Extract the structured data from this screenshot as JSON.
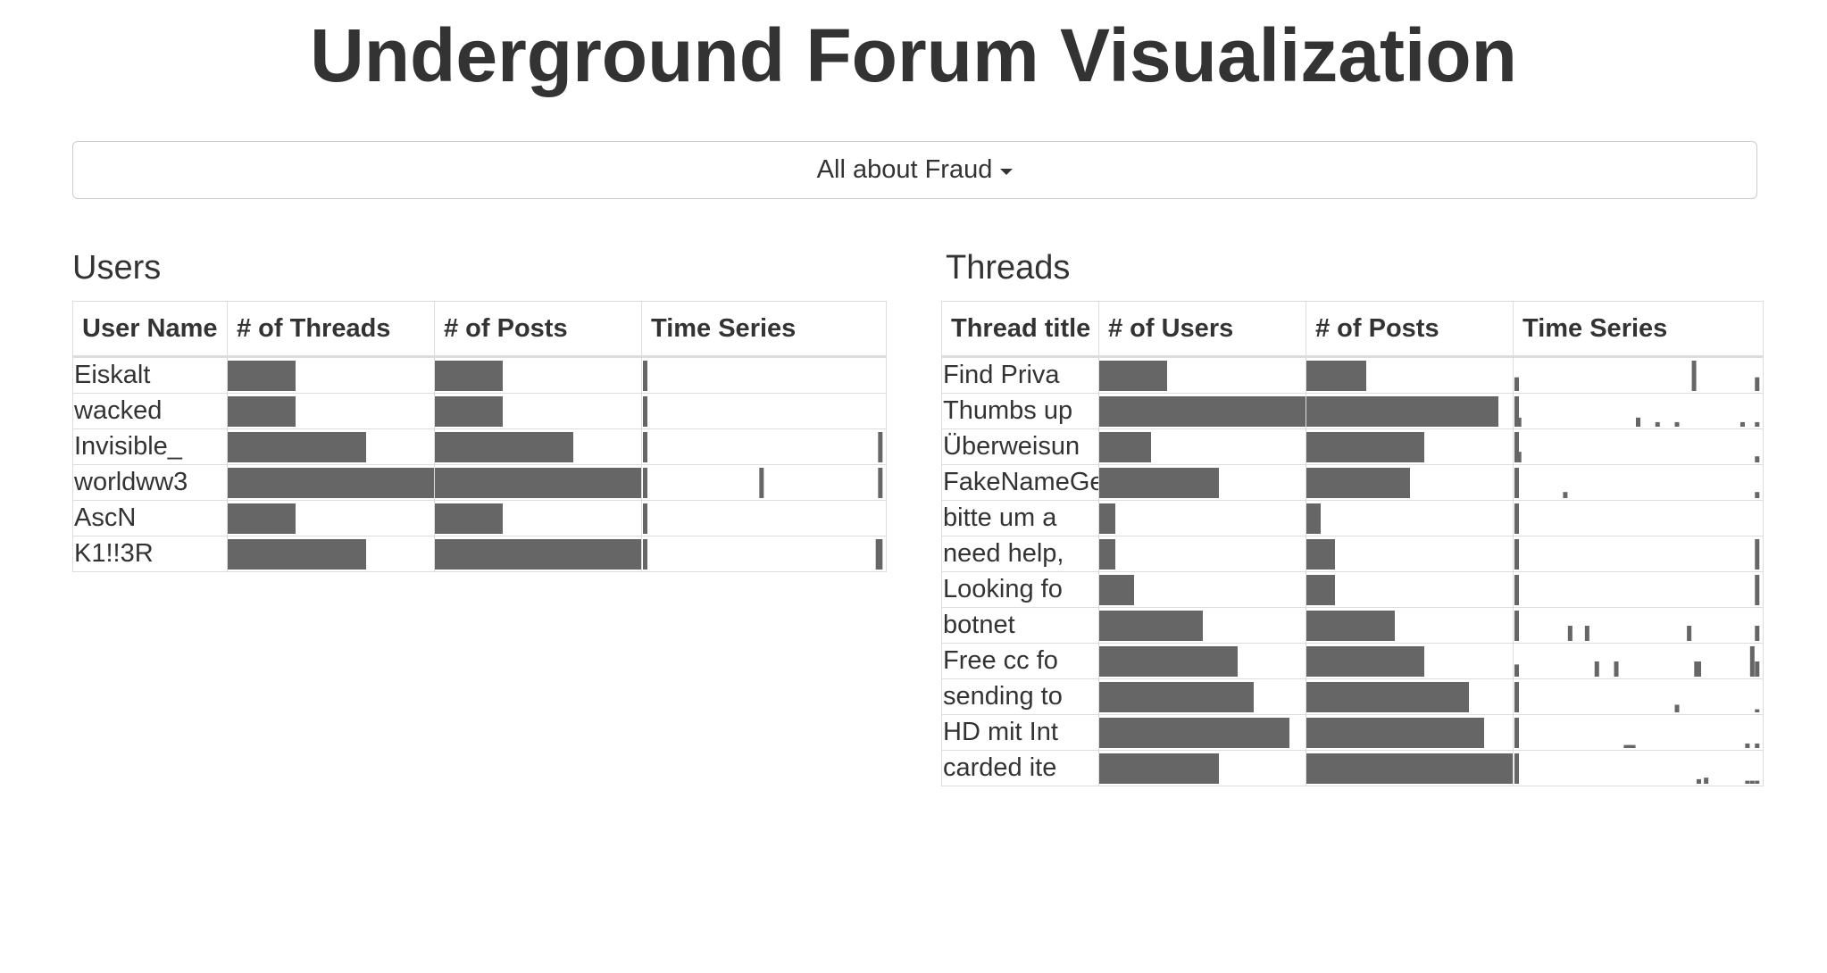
{
  "page": {
    "title": "Underground Forum Visualization"
  },
  "forum_select": {
    "selected": "All about Fraud"
  },
  "colors": {
    "bar": "#666666",
    "border": "#dddddd",
    "text": "#333333"
  },
  "users": {
    "title": "Users",
    "columns": [
      "User Name",
      "# of Threads",
      "# of Posts",
      "Time Series"
    ],
    "rows": [
      {
        "name": "Eiskalt",
        "threads": 0.33,
        "posts": 0.33,
        "spikes": [
          [
            0,
            1
          ]
        ]
      },
      {
        "name": "wacked",
        "threads": 0.33,
        "posts": 0.33,
        "spikes": [
          [
            0,
            1
          ]
        ]
      },
      {
        "name": "Invisible_",
        "threads": 0.67,
        "posts": 0.67,
        "spikes": [
          [
            0,
            1
          ],
          [
            0.99,
            1
          ]
        ]
      },
      {
        "name": "worldww3",
        "threads": 1.0,
        "posts": 1.0,
        "spikes": [
          [
            0,
            1
          ],
          [
            0.49,
            1
          ],
          [
            0.99,
            1
          ]
        ]
      },
      {
        "name": "AscN",
        "threads": 0.33,
        "posts": 0.33,
        "spikes": [
          [
            0,
            1
          ]
        ]
      },
      {
        "name": "K1!!3R",
        "threads": 0.67,
        "posts": 1.0,
        "spikes": [
          [
            0,
            1
          ],
          [
            0.98,
            1
          ],
          [
            0.99,
            1
          ]
        ]
      }
    ]
  },
  "threads": {
    "title": "Threads",
    "columns": [
      "Thread title",
      "# of Users",
      "# of Posts",
      "Time Series"
    ],
    "rows": [
      {
        "name": "Find Priva",
        "users": 0.33,
        "posts": 0.29,
        "spikes": [
          [
            0,
            0.45
          ],
          [
            0.73,
            1
          ],
          [
            0.99,
            0.45
          ]
        ]
      },
      {
        "name": "Thumbs up",
        "users": 1.0,
        "posts": 0.93,
        "spikes": [
          [
            0,
            1
          ],
          [
            0.01,
            0.3
          ],
          [
            0.5,
            0.3
          ],
          [
            0.58,
            0.15
          ],
          [
            0.66,
            0.15
          ],
          [
            0.93,
            0.15
          ],
          [
            0.99,
            0.15
          ]
        ]
      },
      {
        "name": "Überweisun",
        "users": 0.25,
        "posts": 0.57,
        "spikes": [
          [
            0,
            1
          ],
          [
            0.01,
            0.35
          ],
          [
            0.99,
            0.2
          ]
        ]
      },
      {
        "name": "FakeNameGe",
        "users": 0.58,
        "posts": 0.5,
        "spikes": [
          [
            0,
            1
          ],
          [
            0.2,
            0.2
          ],
          [
            0.99,
            0.2
          ]
        ]
      },
      {
        "name": "bitte um a",
        "users": 0.08,
        "posts": 0.07,
        "spikes": [
          [
            0,
            1
          ]
        ]
      },
      {
        "name": "need help,",
        "users": 0.08,
        "posts": 0.14,
        "spikes": [
          [
            0,
            1
          ],
          [
            0.99,
            1
          ]
        ]
      },
      {
        "name": "Looking fo",
        "users": 0.17,
        "posts": 0.14,
        "spikes": [
          [
            0,
            1
          ],
          [
            0.99,
            1
          ]
        ]
      },
      {
        "name": "botnet",
        "users": 0.5,
        "posts": 0.43,
        "spikes": [
          [
            0,
            1
          ],
          [
            0.22,
            0.5
          ],
          [
            0.29,
            0.5
          ],
          [
            0.71,
            0.5
          ],
          [
            0.99,
            0.5
          ]
        ]
      },
      {
        "name": "Free cc fo",
        "users": 0.67,
        "posts": 0.57,
        "spikes": [
          [
            0,
            0.4
          ],
          [
            0.33,
            0.5
          ],
          [
            0.41,
            0.5
          ],
          [
            0.74,
            0.5
          ],
          [
            0.75,
            0.5
          ],
          [
            0.97,
            1
          ],
          [
            0.99,
            0.5
          ]
        ]
      },
      {
        "name": "sending to",
        "users": 0.75,
        "posts": 0.79,
        "spikes": [
          [
            0,
            1
          ],
          [
            0.66,
            0.25
          ],
          [
            0.99,
            0.1
          ]
        ]
      },
      {
        "name": "HD mit Int",
        "users": 0.92,
        "posts": 0.86,
        "spikes": [
          [
            0,
            1
          ],
          [
            0.45,
            0.1
          ],
          [
            0.46,
            0.1
          ],
          [
            0.47,
            0.1
          ],
          [
            0.48,
            0.1
          ],
          [
            0.95,
            0.15
          ],
          [
            0.99,
            0.15
          ]
        ]
      },
      {
        "name": "carded ite",
        "users": 0.58,
        "posts": 1.0,
        "spikes": [
          [
            0,
            1
          ],
          [
            0.75,
            0.15
          ],
          [
            0.78,
            0.2
          ],
          [
            0.95,
            0.1
          ],
          [
            0.97,
            0.1
          ],
          [
            0.99,
            0.1
          ]
        ]
      }
    ]
  }
}
